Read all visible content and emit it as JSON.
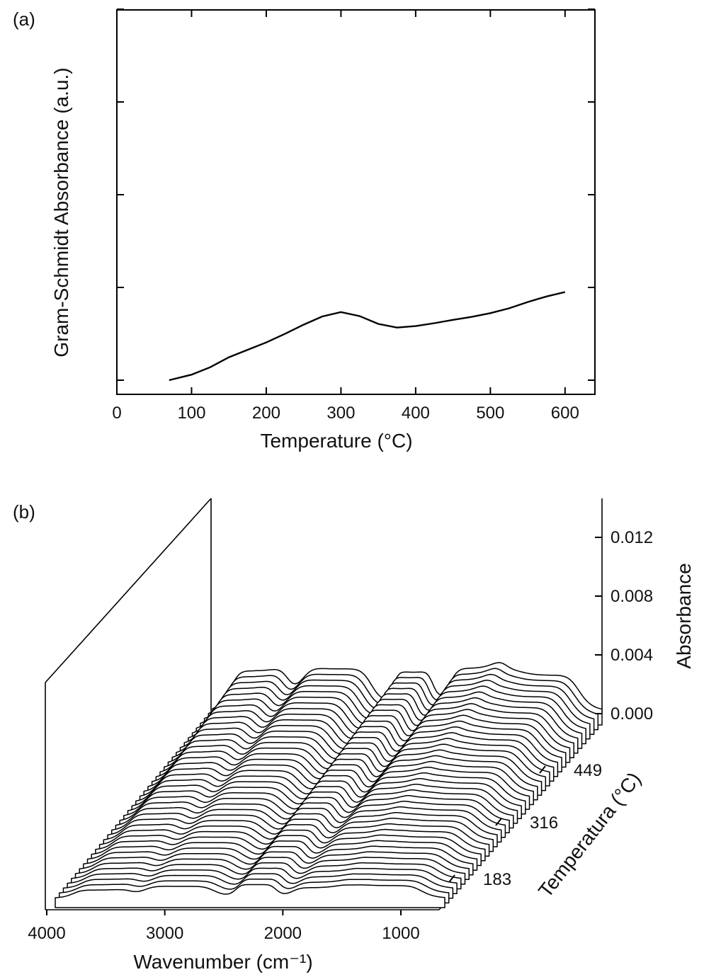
{
  "chart_data": [
    {
      "panel": "(a)",
      "type": "line",
      "xlabel": "Temperature (°C)",
      "ylabel": "Gram-Schmidt Absorbance (a.u.)",
      "xlim": [
        0,
        640
      ],
      "ylim": [
        0,
        1
      ],
      "xticks": [
        0,
        100,
        200,
        300,
        400,
        500,
        600
      ],
      "yticks_unlabeled": 5,
      "grid": false,
      "series": [
        {
          "x": [
            70,
            100,
            125,
            150,
            175,
            200,
            225,
            250,
            275,
            300,
            325,
            350,
            375,
            400,
            425,
            450,
            475,
            500,
            525,
            550,
            575,
            600
          ],
          "values": [
            0.0,
            0.015,
            0.035,
            0.062,
            0.082,
            0.102,
            0.125,
            0.15,
            0.172,
            0.184,
            0.173,
            0.152,
            0.142,
            0.146,
            0.154,
            0.163,
            0.171,
            0.181,
            0.194,
            0.211,
            0.226,
            0.238
          ]
        }
      ]
    },
    {
      "panel": "(b)",
      "type": "waterfall",
      "xlabel": "Wavenumber (cm⁻¹)",
      "ylabel": "Absorbance",
      "zlabel": "Temperatura (°C)",
      "x_range": [
        4000,
        700
      ],
      "xticks": [
        4000,
        3000,
        2000,
        1000
      ],
      "yticks": [
        "0.000",
        "0.004",
        "0.008",
        "0.012"
      ],
      "zticks": [
        183,
        316,
        449
      ],
      "band_centers_cm-1": [
        3600,
        2950,
        2300,
        1750,
        1200
      ],
      "grid": false
    }
  ]
}
